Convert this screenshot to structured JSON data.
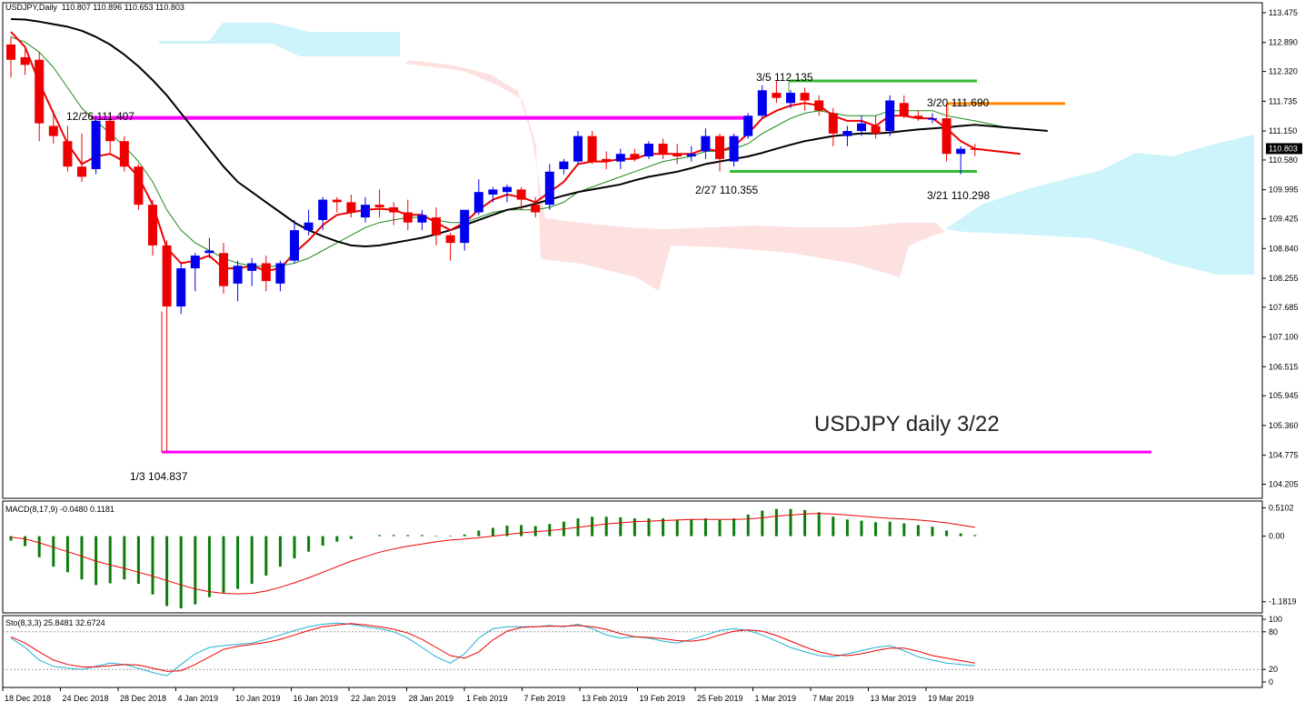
{
  "header": {
    "symbol": "USDJPY,Daily",
    "ohlc": "110.807 110.896 110.653 110.803"
  },
  "macd_panel": {
    "label": "MACD(8,17,9) -0.0480 0.1181"
  },
  "stoch_panel": {
    "label": "Sto(8,3,3) 25.8481 32.6724"
  },
  "chart_data": {
    "type": "candlestick",
    "title": "USDJPY daily 3/22",
    "current_price": "110.803",
    "price_ticks": [
      "113.475",
      "112.890",
      "112.320",
      "111.735",
      "111.150",
      "110.580",
      "109.995",
      "109.425",
      "108.840",
      "108.255",
      "107.685",
      "107.100",
      "106.515",
      "105.945",
      "105.360",
      "104.775",
      "104.205"
    ],
    "date_ticks": [
      "18 Dec 2018",
      "24 Dec 2018",
      "28 Dec 2018",
      "4 Jan 2019",
      "10 Jan 2019",
      "16 Jan 2019",
      "22 Jan 2019",
      "28 Jan 2019",
      "1 Feb 2019",
      "7 Feb 2019",
      "13 Feb 2019",
      "19 Feb 2019",
      "25 Feb 2019",
      "1 Mar 2019",
      "7 Mar 2019",
      "13 Mar 2019",
      "19 Mar 2019"
    ],
    "annotations": [
      "12/26 111.407",
      "3/5 112.135",
      "3/20 111.690",
      "2/27 110.355",
      "3/21 110.298",
      "1/3 104.837"
    ],
    "levels": [
      {
        "name": "12/26 high",
        "value": 111.407,
        "color": "#ff00ff"
      },
      {
        "name": "1/3 low",
        "value": 104.837,
        "color": "#ff00ff"
      },
      {
        "name": "3/5 high",
        "value": 112.135,
        "color": "#33bb33"
      },
      {
        "name": "2/27 low",
        "value": 110.355,
        "color": "#33bb33"
      },
      {
        "name": "3/20 high",
        "value": 111.69,
        "color": "#ff8800"
      }
    ],
    "candles": [
      {
        "o": 112.85,
        "h": 113.0,
        "c": 112.55,
        "l": 112.2
      },
      {
        "o": 112.6,
        "h": 112.75,
        "c": 112.45,
        "l": 112.25
      },
      {
        "o": 112.55,
        "h": 112.7,
        "c": 111.3,
        "l": 110.95
      },
      {
        "o": 111.25,
        "h": 111.55,
        "c": 111.05,
        "l": 110.9
      },
      {
        "o": 110.95,
        "h": 111.25,
        "c": 110.45,
        "l": 110.35
      },
      {
        "o": 110.45,
        "h": 111.1,
        "c": 110.25,
        "l": 110.15
      },
      {
        "o": 110.4,
        "h": 111.45,
        "c": 111.35,
        "l": 110.3
      },
      {
        "o": 111.35,
        "h": 111.5,
        "c": 110.95,
        "l": 110.7
      },
      {
        "o": 110.95,
        "h": 111.05,
        "c": 110.45,
        "l": 110.35
      },
      {
        "o": 110.45,
        "h": 110.5,
        "c": 109.7,
        "l": 109.6
      },
      {
        "o": 109.7,
        "h": 109.8,
        "c": 108.9,
        "l": 108.7
      },
      {
        "o": 108.9,
        "h": 109.0,
        "c": 107.7,
        "l": 104.837
      },
      {
        "o": 107.7,
        "h": 108.55,
        "c": 108.45,
        "l": 107.55
      },
      {
        "o": 108.45,
        "h": 108.75,
        "c": 108.7,
        "l": 108.0
      },
      {
        "o": 108.75,
        "h": 109.05,
        "c": 108.8,
        "l": 108.65
      },
      {
        "o": 108.75,
        "h": 108.95,
        "c": 108.1,
        "l": 107.95
      },
      {
        "o": 108.15,
        "h": 108.6,
        "c": 108.5,
        "l": 107.8
      },
      {
        "o": 108.4,
        "h": 108.65,
        "c": 108.55,
        "l": 108.1
      },
      {
        "o": 108.55,
        "h": 108.7,
        "c": 108.2,
        "l": 108.0
      },
      {
        "o": 108.15,
        "h": 108.6,
        "c": 108.55,
        "l": 108.0
      },
      {
        "o": 108.6,
        "h": 109.4,
        "c": 109.2,
        "l": 108.55
      },
      {
        "o": 109.2,
        "h": 109.6,
        "c": 109.35,
        "l": 109.1
      },
      {
        "o": 109.4,
        "h": 109.85,
        "c": 109.8,
        "l": 109.2
      },
      {
        "o": 109.8,
        "h": 109.85,
        "c": 109.75,
        "l": 109.55
      },
      {
        "o": 109.75,
        "h": 109.9,
        "c": 109.55,
        "l": 109.45
      },
      {
        "o": 109.45,
        "h": 109.85,
        "c": 109.7,
        "l": 109.35
      },
      {
        "o": 109.7,
        "h": 110.0,
        "c": 109.65,
        "l": 109.45
      },
      {
        "o": 109.65,
        "h": 109.75,
        "c": 109.55,
        "l": 109.3
      },
      {
        "o": 109.55,
        "h": 109.8,
        "c": 109.35,
        "l": 109.2
      },
      {
        "o": 109.35,
        "h": 109.6,
        "c": 109.5,
        "l": 109.2
      },
      {
        "o": 109.45,
        "h": 109.65,
        "c": 109.1,
        "l": 108.9
      },
      {
        "o": 109.1,
        "h": 109.15,
        "c": 108.95,
        "l": 108.6
      },
      {
        "o": 108.95,
        "h": 109.6,
        "c": 109.6,
        "l": 108.8
      },
      {
        "o": 109.55,
        "h": 110.2,
        "c": 109.95,
        "l": 109.5
      },
      {
        "o": 109.9,
        "h": 110.05,
        "c": 110.0,
        "l": 109.75
      },
      {
        "o": 109.95,
        "h": 110.1,
        "c": 110.05,
        "l": 109.75
      },
      {
        "o": 110.0,
        "h": 110.05,
        "c": 109.8,
        "l": 109.6
      },
      {
        "o": 109.7,
        "h": 109.85,
        "c": 109.55,
        "l": 109.45
      },
      {
        "o": 109.7,
        "h": 110.5,
        "c": 110.35,
        "l": 109.6
      },
      {
        "o": 110.4,
        "h": 110.6,
        "c": 110.55,
        "l": 110.3
      },
      {
        "o": 110.55,
        "h": 111.15,
        "c": 111.05,
        "l": 110.5
      },
      {
        "o": 111.05,
        "h": 111.15,
        "c": 110.55,
        "l": 110.5
      },
      {
        "o": 110.6,
        "h": 110.75,
        "c": 110.55,
        "l": 110.4
      },
      {
        "o": 110.55,
        "h": 110.8,
        "c": 110.7,
        "l": 110.4
      },
      {
        "o": 110.7,
        "h": 110.8,
        "c": 110.6,
        "l": 110.55
      },
      {
        "o": 110.65,
        "h": 110.95,
        "c": 110.9,
        "l": 110.6
      },
      {
        "o": 110.9,
        "h": 111.0,
        "c": 110.7,
        "l": 110.6
      },
      {
        "o": 110.7,
        "h": 110.9,
        "c": 110.65,
        "l": 110.5
      },
      {
        "o": 110.65,
        "h": 110.85,
        "c": 110.7,
        "l": 110.55
      },
      {
        "o": 110.75,
        "h": 111.2,
        "c": 111.05,
        "l": 110.6
      },
      {
        "o": 111.05,
        "h": 111.1,
        "c": 110.6,
        "l": 110.355
      },
      {
        "o": 110.55,
        "h": 111.1,
        "c": 111.05,
        "l": 110.45
      },
      {
        "o": 111.05,
        "h": 111.5,
        "c": 111.45,
        "l": 111.0
      },
      {
        "o": 111.45,
        "h": 112.05,
        "c": 111.95,
        "l": 111.4
      },
      {
        "o": 111.9,
        "h": 112.135,
        "c": 111.8,
        "l": 111.7
      },
      {
        "o": 111.7,
        "h": 111.95,
        "c": 111.9,
        "l": 111.6
      },
      {
        "o": 111.9,
        "h": 112.0,
        "c": 111.75,
        "l": 111.55
      },
      {
        "o": 111.75,
        "h": 111.85,
        "c": 111.55,
        "l": 111.45
      },
      {
        "o": 111.5,
        "h": 111.6,
        "c": 111.1,
        "l": 110.85
      },
      {
        "o": 111.05,
        "h": 111.25,
        "c": 111.15,
        "l": 110.85
      },
      {
        "o": 111.15,
        "h": 111.45,
        "c": 111.3,
        "l": 111.05
      },
      {
        "o": 111.25,
        "h": 111.45,
        "c": 111.1,
        "l": 111.0
      },
      {
        "o": 111.15,
        "h": 111.85,
        "c": 111.75,
        "l": 111.05
      },
      {
        "o": 111.7,
        "h": 111.85,
        "c": 111.45,
        "l": 111.4
      },
      {
        "o": 111.45,
        "h": 111.55,
        "c": 111.4,
        "l": 111.35
      },
      {
        "o": 111.4,
        "h": 111.5,
        "c": 111.4,
        "l": 111.3
      },
      {
        "o": 111.4,
        "h": 111.69,
        "c": 110.7,
        "l": 110.55
      },
      {
        "o": 110.7,
        "h": 110.85,
        "c": 110.8,
        "l": 110.298
      },
      {
        "o": 110.807,
        "h": 110.896,
        "c": 110.803,
        "l": 110.653
      }
    ],
    "macd_ticks": [
      "0.5102",
      "0.00",
      "-1.1819"
    ],
    "macd_hist": [
      -0.08,
      -0.18,
      -0.38,
      -0.55,
      -0.65,
      -0.78,
      -0.88,
      -0.85,
      -0.78,
      -0.86,
      -1.05,
      -1.26,
      -1.3,
      -1.23,
      -1.1,
      -1.02,
      -0.95,
      -0.86,
      -0.71,
      -0.55,
      -0.4,
      -0.28,
      -0.17,
      -0.1,
      -0.05,
      0.0,
      0.02,
      0.02,
      0.02,
      0.02,
      0.01,
      0.01,
      0.03,
      0.1,
      0.15,
      0.19,
      0.2,
      0.18,
      0.22,
      0.26,
      0.32,
      0.35,
      0.35,
      0.34,
      0.32,
      0.32,
      0.32,
      0.3,
      0.3,
      0.32,
      0.29,
      0.32,
      0.39,
      0.46,
      0.49,
      0.49,
      0.47,
      0.43,
      0.35,
      0.3,
      0.28,
      0.25,
      0.26,
      0.23,
      0.2,
      0.17,
      0.1,
      0.05,
      0.02
    ],
    "macd_signal": [
      -0.02,
      -0.05,
      -0.12,
      -0.2,
      -0.28,
      -0.36,
      -0.45,
      -0.52,
      -0.58,
      -0.65,
      -0.72,
      -0.8,
      -0.88,
      -0.95,
      -1.0,
      -1.03,
      -1.04,
      -1.03,
      -0.99,
      -0.92,
      -0.84,
      -0.75,
      -0.65,
      -0.55,
      -0.45,
      -0.37,
      -0.29,
      -0.23,
      -0.18,
      -0.14,
      -0.1,
      -0.07,
      -0.05,
      -0.03,
      0.0,
      0.03,
      0.06,
      0.08,
      0.1,
      0.13,
      0.16,
      0.19,
      0.22,
      0.24,
      0.26,
      0.27,
      0.28,
      0.29,
      0.3,
      0.3,
      0.3,
      0.3,
      0.31,
      0.33,
      0.36,
      0.38,
      0.4,
      0.41,
      0.4,
      0.38,
      0.36,
      0.34,
      0.32,
      0.31,
      0.29,
      0.27,
      0.24,
      0.2,
      0.16
    ],
    "stoch_ticks": [
      "100",
      "80",
      "20",
      "0"
    ],
    "stoch_k": [
      70,
      55,
      35,
      25,
      22,
      20,
      25,
      30,
      28,
      22,
      15,
      10,
      28,
      45,
      55,
      58,
      60,
      62,
      68,
      75,
      82,
      88,
      92,
      94,
      92,
      88,
      85,
      80,
      70,
      55,
      40,
      30,
      45,
      70,
      85,
      88,
      88,
      88,
      90,
      88,
      92,
      85,
      75,
      70,
      72,
      70,
      65,
      62,
      68,
      75,
      82,
      85,
      82,
      75,
      65,
      55,
      48,
      42,
      40,
      45,
      50,
      55,
      58,
      50,
      40,
      35,
      30,
      28,
      26
    ],
    "stoch_d": [
      72,
      62,
      48,
      35,
      28,
      24,
      24,
      26,
      28,
      27,
      22,
      17,
      18,
      28,
      40,
      52,
      57,
      60,
      63,
      68,
      75,
      82,
      88,
      91,
      93,
      91,
      88,
      84,
      78,
      68,
      55,
      42,
      38,
      48,
      67,
      81,
      87,
      88,
      89,
      89,
      90,
      88,
      84,
      77,
      72,
      71,
      69,
      66,
      65,
      68,
      75,
      81,
      83,
      81,
      74,
      65,
      56,
      48,
      43,
      42,
      45,
      50,
      54,
      54,
      49,
      42,
      38,
      34,
      30
    ],
    "ema_red": [
      113.1,
      112.8,
      112.1,
      111.5,
      110.9,
      110.5,
      110.65,
      110.7,
      110.55,
      110.25,
      109.7,
      108.85,
      108.55,
      108.6,
      108.7,
      108.45,
      108.45,
      108.5,
      108.4,
      108.45,
      108.75,
      109.0,
      109.3,
      109.5,
      109.55,
      109.6,
      109.62,
      109.6,
      109.5,
      109.5,
      109.35,
      109.2,
      109.35,
      109.6,
      109.8,
      109.9,
      109.85,
      109.75,
      109.95,
      110.15,
      110.5,
      110.55,
      110.55,
      110.6,
      110.6,
      110.7,
      110.7,
      110.7,
      110.7,
      110.8,
      110.75,
      110.85,
      111.1,
      111.4,
      111.55,
      111.65,
      111.7,
      111.65,
      111.45,
      111.35,
      111.35,
      111.25,
      111.45,
      111.45,
      111.4,
      111.4,
      111.2,
      110.95,
      110.8
    ],
    "ema_green": [
      113.0,
      112.9,
      112.7,
      112.4,
      112.0,
      111.6,
      111.35,
      111.1,
      110.85,
      110.55,
      110.15,
      109.6,
      109.2,
      108.95,
      108.8,
      108.65,
      108.55,
      108.5,
      108.48,
      108.5,
      108.55,
      108.65,
      108.8,
      108.95,
      109.1,
      109.25,
      109.35,
      109.4,
      109.45,
      109.45,
      109.4,
      109.35,
      109.35,
      109.45,
      109.55,
      109.6,
      109.6,
      109.6,
      109.65,
      109.75,
      109.95,
      110.05,
      110.15,
      110.25,
      110.35,
      110.45,
      110.55,
      110.6,
      110.65,
      110.75,
      110.75,
      110.8,
      110.9,
      111.1,
      111.25,
      111.4,
      111.5,
      111.55,
      111.5,
      111.45,
      111.45,
      111.45,
      111.55,
      111.55,
      111.55,
      111.55,
      111.45,
      111.4,
      111.35
    ],
    "sma_black": [
      113.35,
      113.34,
      113.3,
      113.25,
      113.2,
      113.12,
      113.0,
      112.85,
      112.65,
      112.42,
      112.15,
      111.85,
      111.5,
      111.15,
      110.8,
      110.45,
      110.15,
      109.95,
      109.75,
      109.55,
      109.35,
      109.2,
      109.08,
      108.98,
      108.9,
      108.88,
      108.9,
      108.95,
      109.0,
      109.05,
      109.12,
      109.2,
      109.3,
      109.4,
      109.5,
      109.6,
      109.65,
      109.72,
      109.8,
      109.88,
      109.95,
      110.0,
      110.05,
      110.1,
      110.18,
      110.25,
      110.3,
      110.35,
      110.42,
      110.5,
      110.55,
      110.6,
      110.65,
      110.72,
      110.8,
      110.88,
      110.95,
      111.0,
      111.05,
      111.08,
      111.1,
      111.1,
      111.12,
      111.15,
      111.18,
      111.2,
      111.22,
      111.25,
      111.27
    ]
  }
}
